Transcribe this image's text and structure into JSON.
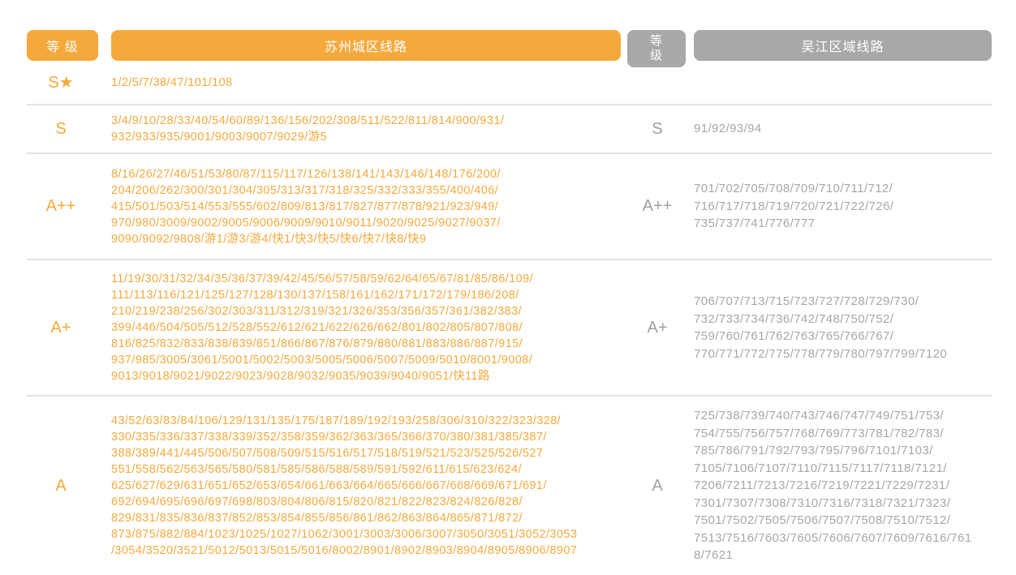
{
  "colors": {
    "orange": "#F5A93C",
    "gray": "#A8A8AA",
    "divider": "#E3E3E3",
    "left_text": "#F5A93C",
    "right_text": "#A5A7AA"
  },
  "headers": {
    "suzhou_grade": "等 级",
    "suzhou_routes": "苏州城区线路",
    "wujiang_grade": "等\n级",
    "wujiang_routes": "吴江区域线路"
  },
  "rows": [
    {
      "grade_left": "S★",
      "suzhou_lines": [
        "1/2/5/7/38/47/101/108"
      ],
      "grade_right": "",
      "wujiang_lines": []
    },
    {
      "grade_left": "S",
      "suzhou_lines": [
        "3/4/9/10/28/33/40/54/60/89/136/156/202/308/511/522/811/814/900/931/",
        "932/933/935/9001/9003/9007/9029/游5"
      ],
      "grade_right": "S",
      "wujiang_lines": [
        "91/92/93/94"
      ]
    },
    {
      "grade_left": "A++",
      "suzhou_lines": [
        "8/16/26/27/46/51/53/80/87/115/117/126/138/141/143/146/148/176/200/",
        "204/206/262/300/301/304/305/313/317/318/325/332/333/355/400/406/",
        "415/501/503/514/553/555/602/809/813/817/827/877/878/921/923/949/",
        "970/980/3009/9002/9005/9006/9009/9010/9011/9020/9025/9027/9037/",
        "9090/9092/9808/游1/游3/游4/快1/快3/快5/快6/快7/快8/快9"
      ],
      "grade_right": "A++",
      "wujiang_lines": [
        "701/702/705/708/709/710/711/712/",
        "716/717/718/719/720/721/722/726/",
        "735/737/741/776/777"
      ]
    },
    {
      "grade_left": "A+",
      "suzhou_lines": [
        "11/19/30/31/32/34/35/36/37/39/42/45/56/57/58/59/62/64/65/67/81/85/86/109/",
        "111/113/116/121/125/127/128/130/137/158/161/162/171/172/179/186/208/",
        "210/219/238/256/302/303/311/312/319/321/326/353/356/357/361/382/383/",
        "399/446/504/505/512/528/552/612/621/622/626/662/801/802/805/807/808/",
        "816/825/832/833/838/839/851/866/867/876/879/880/881/883/886/887/915/",
        "937/985/3005/3061/5001/5002/5003/5005/5006/5007/5009/5010/8001/9008/",
        "9013/9018/9021/9022/9023/9028/9032/9035/9039/9040/9051/快11路"
      ],
      "grade_right": "A+",
      "wujiang_lines": [
        "706/707/713/715/723/727/728/729/730/",
        "732/733/734/736/742/748/750/752/",
        "759/760/761/762/763/765/766/767/",
        "770/771/772/775/778/779/780/797/799/7120"
      ]
    },
    {
      "grade_left": "A",
      "suzhou_lines": [
        "43/52/63/83/84/106/129/131/135/175/187/189/192/193/258/306/310/322/323/328/",
        "330/335/336/337/338/339/352/358/359/362/363/365/366/370/380/381/385/387/",
        "388/389/441/445/506/507/508/509/515/516/517/518/519/521/523/525/526/527",
        "551/558/562/563/565/580/581/585/586/588/589/591/592/611/615/623/624/",
        "625/627/629/631/651/652/653/654/661/663/664/665/666/667/668/669/671/691/",
        "692/694/695/696/697/698/803/804/806/815/820/821/822/823/824/826/828/",
        "829/831/835/836/837/852/853/854/855/856/861/862/863/864/865/871/872/",
        "873/875/882/884/1023/1025/1027/1062/3001/3003/3006/3007/3050/3051/3052/3053",
        "/3054/3520/3521/5012/5013/5015/5016/8002/8901/8902/8903/8904/8905/8906/8907"
      ],
      "grade_right": "A",
      "wujiang_lines": [
        "725/738/739/740/743/746/747/749/751/753/",
        "754/755/756/757/768/769/773/781/782/783/",
        "785/786/791/792/793/795/796/7101/7103/",
        "7105/7106/7107/7110/7115/7117/7118/7121/",
        "7206/7211/7213/7216/7219/7221/7229/7231/",
        "7301/7307/7308/7310/7316/7318/7321/7323/",
        "7501/7502/7505/7506/7507/7508/7510/7512/",
        "7513/7516/7603/7605/7606/7607/7609/7616/761",
        "8/7621"
      ]
    }
  ]
}
